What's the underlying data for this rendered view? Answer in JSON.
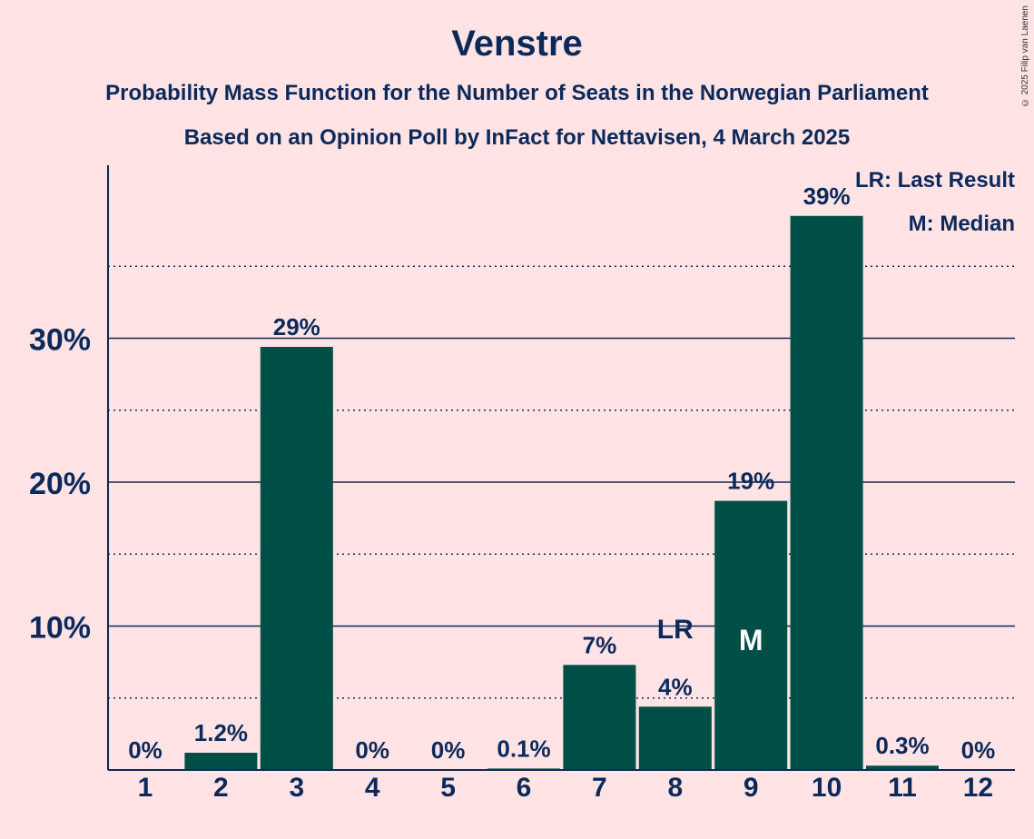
{
  "chart_data": {
    "type": "bar",
    "title": "Venstre",
    "subtitle": "Probability Mass Function for the Number of Seats in the Norwegian Parliament",
    "subtitle2": "Based on an Opinion Poll by InFact for Nettavisen, 4 March 2025",
    "xlabel": "",
    "ylabel": "",
    "categories": [
      "1",
      "2",
      "3",
      "4",
      "5",
      "6",
      "7",
      "8",
      "9",
      "10",
      "11",
      "12"
    ],
    "values": [
      0,
      1.2,
      29.4,
      0,
      0,
      0.1,
      7.3,
      4.4,
      18.7,
      38.5,
      0.3,
      0
    ],
    "value_labels": [
      "0%",
      "1.2%",
      "29%",
      "0%",
      "0%",
      "0.1%",
      "7%",
      "4%",
      "19%",
      "39%",
      "0.3%",
      "0%"
    ],
    "ylim": [
      0,
      42
    ],
    "y_ticks": [
      10,
      20,
      30
    ],
    "y_tick_labels": [
      "10%",
      "20%",
      "30%"
    ],
    "y_minor_ticks": [
      5,
      15,
      25,
      35
    ],
    "grid": true,
    "last_result_category": "8",
    "last_result_marker": "LR",
    "median_category": "9",
    "median_marker": "M",
    "legend": {
      "position": "top-right",
      "items": [
        "LR: Last Result",
        "M: Median"
      ]
    },
    "colors": {
      "bar": "#004f47",
      "text": "#0b2a5b",
      "background": "#ffe3e5"
    }
  },
  "copyright": "© 2025 Filip van Laenen"
}
